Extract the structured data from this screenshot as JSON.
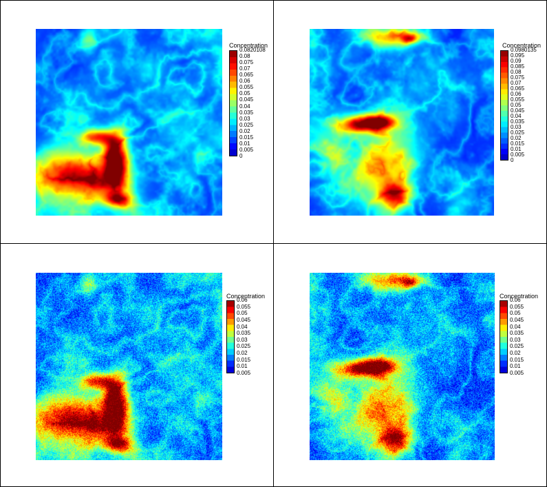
{
  "panels": [
    {
      "legend_title": "Concentration",
      "noisy": false,
      "scene": "a",
      "max_value": 0.0820108,
      "ticks": [
        "0.0820108",
        "0.08",
        "0.075",
        "0.07",
        "0.065",
        "0.06",
        "0.055",
        "0.05",
        "0.045",
        "0.04",
        "0.035",
        "0.03",
        "0.025",
        "0.02",
        "0.015",
        "0.01",
        "0.005",
        "0"
      ]
    },
    {
      "legend_title": "Concentration",
      "noisy": false,
      "scene": "b",
      "max_value": 0.0980135,
      "ticks": [
        "0.0980135",
        "0.095",
        "0.09",
        "0.085",
        "0.08",
        "0.075",
        "0.07",
        "0.065",
        "0.06",
        "0.055",
        "0.05",
        "0.045",
        "0.04",
        "0.035",
        "0.03",
        "0.025",
        "0.02",
        "0.015",
        "0.01",
        "0.005",
        "0"
      ]
    },
    {
      "legend_title": "Concentration",
      "noisy": true,
      "scene": "a",
      "max_value": 0.06,
      "ticks": [
        "0.06",
        "0.055",
        "0.05",
        "0.045",
        "0.04",
        "0.035",
        "0.03",
        "0.025",
        "0.02",
        "0.015",
        "0.01",
        "0.005"
      ]
    },
    {
      "legend_title": "Concentration",
      "noisy": true,
      "scene": "b",
      "max_value": 0.06,
      "ticks": [
        "0.06",
        "0.055",
        "0.05",
        "0.045",
        "0.04",
        "0.035",
        "0.03",
        "0.025",
        "0.02",
        "0.015",
        "0.01",
        "0.005"
      ]
    }
  ]
}
